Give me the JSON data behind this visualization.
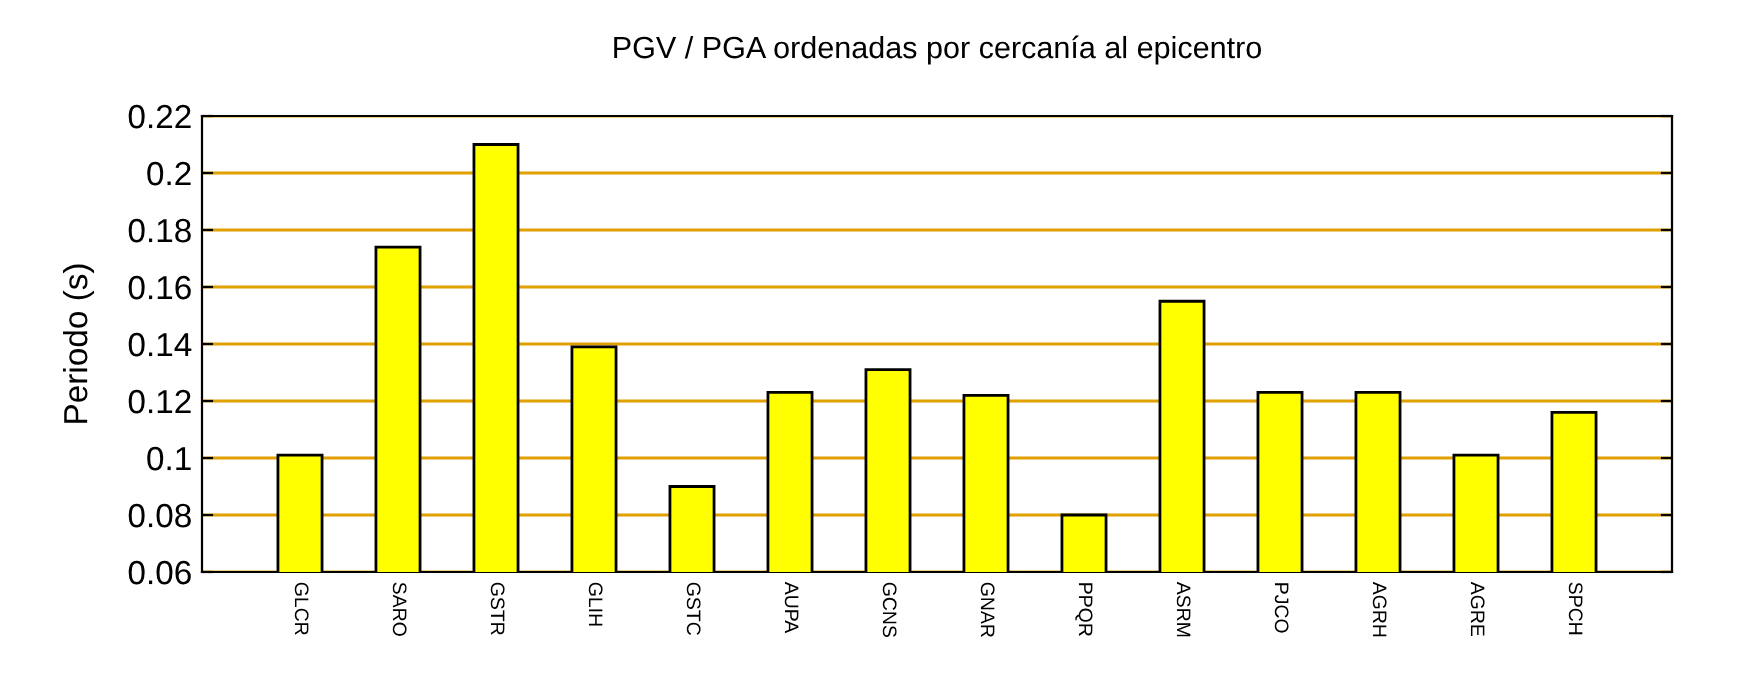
{
  "chart_data": {
    "type": "bar",
    "title": "PGV / PGA ordenadas por cercanía al epicentro",
    "ylabel": "Periodo (s)",
    "categories": [
      "GLCR",
      "SARO",
      "GSTR",
      "GLIH",
      "GSTC",
      "AUPA",
      "GCNS",
      "GNAR",
      "PPQR",
      "ASRM",
      "PJCO",
      "AGRH",
      "AGRE",
      "SPCH"
    ],
    "values": [
      0.101,
      0.174,
      0.21,
      0.139,
      0.09,
      0.123,
      0.131,
      0.122,
      0.08,
      0.155,
      0.123,
      0.123,
      0.101,
      0.116
    ],
    "color": "#ffff00",
    "ylim": [
      0.06,
      0.22
    ],
    "yticks": [
      0.06,
      0.08,
      0.1,
      0.12,
      0.14,
      0.16,
      0.18,
      0.2,
      0.22
    ],
    "grid": "y",
    "legend": false
  }
}
